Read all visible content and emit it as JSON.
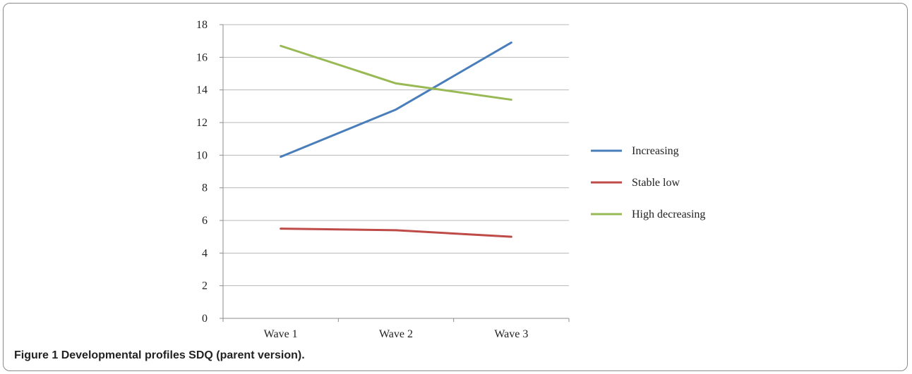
{
  "caption": {
    "label": "Figure 1",
    "text": "Developmental profiles SDQ (parent version)."
  },
  "chart_data": {
    "type": "line",
    "title": "",
    "xlabel": "",
    "ylabel": "",
    "categories": [
      "Wave 1",
      "Wave 2",
      "Wave 3"
    ],
    "ylim": [
      0,
      18
    ],
    "yticks": [
      0,
      2,
      4,
      6,
      8,
      10,
      12,
      14,
      16,
      18
    ],
    "grid": true,
    "legend_position": "right",
    "series": [
      {
        "name": "Increasing",
        "color": "#4a7ebb",
        "values": [
          9.9,
          12.8,
          16.9
        ]
      },
      {
        "name": "Stable low",
        "color": "#be4b48",
        "values": [
          5.5,
          5.4,
          5.0
        ]
      },
      {
        "name": "High decreasing",
        "color": "#98b954",
        "values": [
          16.7,
          14.4,
          13.4
        ]
      }
    ]
  }
}
